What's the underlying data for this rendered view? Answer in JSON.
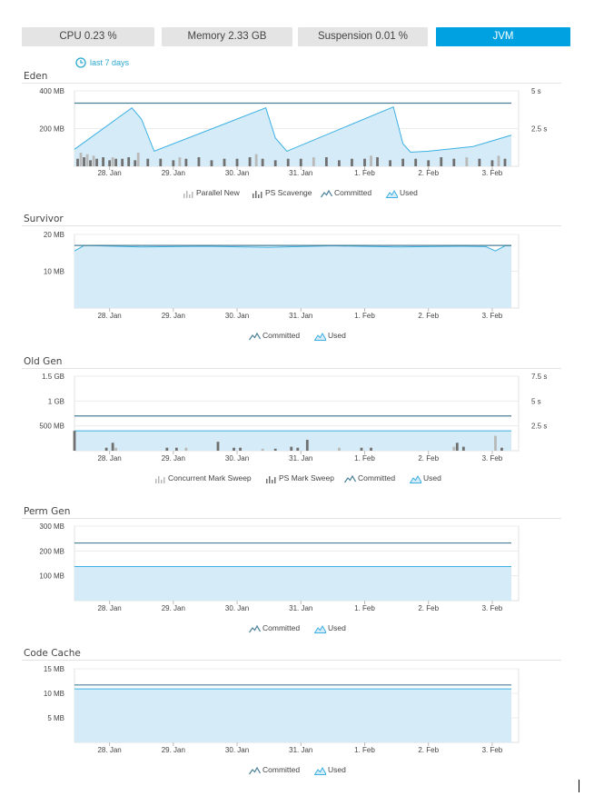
{
  "tabs": [
    {
      "label": "CPU 0.23 %",
      "active": false
    },
    {
      "label": "Memory 2.33 GB",
      "active": false
    },
    {
      "label": "Suspension 0.01 %",
      "active": false
    },
    {
      "label": "JVM",
      "active": true
    }
  ],
  "timeframe": {
    "label": "last 7 days",
    "icon": "clock-icon"
  },
  "colors": {
    "accent": "#00a1e0",
    "used_fill": "#d5ecf8",
    "used_line": "#3cb0e3",
    "committed_line": "#4a7f96",
    "gc_bar_light": "#b9b9b9",
    "gc_bar_dark": "#707070",
    "tab_bg": "#e4e4e4"
  },
  "sections": [
    {
      "title": "Eden",
      "legend": [
        {
          "label": "Parallel New",
          "icon": "bar-light-icon"
        },
        {
          "label": "PS Scavenge",
          "icon": "bar-dark-icon"
        },
        {
          "label": "Committed",
          "icon": "committed-line-icon"
        },
        {
          "label": "Used",
          "icon": "used-area-icon"
        }
      ]
    },
    {
      "title": "Survivor",
      "legend": [
        {
          "label": "Committed",
          "icon": "committed-line-icon"
        },
        {
          "label": "Used",
          "icon": "used-area-icon"
        }
      ]
    },
    {
      "title": "Old Gen",
      "legend": [
        {
          "label": "Concurrent Mark Sweep",
          "icon": "bar-light-icon"
        },
        {
          "label": "PS Mark Sweep",
          "icon": "bar-dark-icon"
        },
        {
          "label": "Committed",
          "icon": "committed-line-icon"
        },
        {
          "label": "Used",
          "icon": "used-area-icon"
        }
      ]
    },
    {
      "title": "Perm Gen",
      "legend": [
        {
          "label": "Committed",
          "icon": "committed-line-icon"
        },
        {
          "label": "Used",
          "icon": "used-area-icon"
        }
      ]
    },
    {
      "title": "Code Cache",
      "legend": [
        {
          "label": "Committed",
          "icon": "committed-line-icon"
        },
        {
          "label": "Used",
          "icon": "used-area-icon"
        }
      ]
    }
  ],
  "chart_data": [
    {
      "type": "area",
      "name": "Eden",
      "x_ticks": [
        "28. Jan",
        "29. Jan",
        "30. Jan",
        "31. Jan",
        "1. Feb",
        "2. Feb",
        "3. Feb"
      ],
      "x_range": [
        -0.55,
        6.3
      ],
      "y_ticks": [
        {
          "value": 200,
          "label": "200 MB"
        },
        {
          "value": 400,
          "label": "400 MB"
        }
      ],
      "ylim": [
        0,
        400
      ],
      "y2_ticks": [
        {
          "value": 2.5,
          "label": "2.5 s"
        },
        {
          "value": 5,
          "label": "5 s"
        }
      ],
      "y2lim": [
        0,
        5
      ],
      "grid": true,
      "series": [
        {
          "name": "Committed",
          "kind": "line",
          "x": [
            -0.55,
            6.3
          ],
          "values": [
            335,
            335
          ]
        },
        {
          "name": "Used",
          "kind": "area",
          "x": [
            -0.55,
            0.35,
            0.5,
            0.7,
            2.45,
            2.6,
            2.78,
            4.45,
            4.6,
            4.72,
            5.0,
            5.7,
            6.3
          ],
          "values": [
            90,
            310,
            250,
            80,
            310,
            150,
            80,
            315,
            120,
            75,
            80,
            105,
            165
          ]
        },
        {
          "name": "Parallel New",
          "kind": "gc-bar",
          "x": [
            -0.45,
            -0.35,
            -0.25,
            0.05,
            0.45,
            1.1,
            2.3,
            3.2,
            4.1,
            5.6,
            6.1
          ],
          "values": [
            0.9,
            0.8,
            0.7,
            0.6,
            0.9,
            0.6,
            0.8,
            0.6,
            0.7,
            0.6,
            0.7
          ]
        },
        {
          "name": "PS Scavenge",
          "kind": "gc-bar",
          "x": [
            -0.5,
            -0.4,
            -0.3,
            -0.2,
            -0.1,
            0.0,
            0.1,
            0.2,
            0.3,
            0.4,
            0.6,
            0.8,
            1.0,
            1.2,
            1.4,
            1.6,
            1.8,
            2.0,
            2.2,
            2.4,
            2.6,
            2.8,
            3.0,
            3.4,
            3.6,
            3.8,
            4.0,
            4.2,
            4.4,
            4.6,
            4.8,
            5.0,
            5.2,
            5.4,
            5.8,
            6.0,
            6.2
          ],
          "values": [
            0.5,
            0.6,
            0.4,
            0.5,
            0.6,
            0.4,
            0.5,
            0.5,
            0.6,
            0.4,
            0.5,
            0.5,
            0.4,
            0.5,
            0.6,
            0.4,
            0.5,
            0.5,
            0.6,
            0.5,
            0.4,
            0.5,
            0.5,
            0.6,
            0.4,
            0.5,
            0.5,
            0.6,
            0.4,
            0.5,
            0.5,
            0.4,
            0.6,
            0.5,
            0.5,
            0.4,
            0.5
          ]
        }
      ]
    },
    {
      "type": "area",
      "name": "Survivor",
      "x_ticks": [
        "28. Jan",
        "29. Jan",
        "30. Jan",
        "31. Jan",
        "1. Feb",
        "2. Feb",
        "3. Feb"
      ],
      "x_range": [
        -0.55,
        6.3
      ],
      "y_ticks": [
        {
          "value": 10,
          "label": "10 MB"
        },
        {
          "value": 20,
          "label": "20 MB"
        }
      ],
      "ylim": [
        0,
        20
      ],
      "grid": true,
      "series": [
        {
          "name": "Committed",
          "kind": "line",
          "x": [
            -0.55,
            6.3
          ],
          "values": [
            17,
            17
          ]
        },
        {
          "name": "Used",
          "kind": "area",
          "x": [
            -0.55,
            -0.4,
            0.5,
            1.5,
            2.5,
            3.5,
            4.5,
            5.5,
            5.9,
            6.05,
            6.2,
            6.3
          ],
          "values": [
            15.5,
            17,
            16.6,
            16.8,
            16.5,
            16.9,
            16.6,
            16.8,
            16.7,
            15.5,
            16.9,
            16.9
          ]
        }
      ]
    },
    {
      "type": "area",
      "name": "Old Gen",
      "x_ticks": [
        "28. Jan",
        "29. Jan",
        "30. Jan",
        "31. Jan",
        "1. Feb",
        "2. Feb",
        "3. Feb"
      ],
      "x_range": [
        -0.55,
        6.3
      ],
      "y_ticks": [
        {
          "value": 500,
          "label": "500 MB"
        },
        {
          "value": 1000,
          "label": "1 GB"
        },
        {
          "value": 1500,
          "label": "1.5 GB"
        }
      ],
      "ylim": [
        0,
        1500
      ],
      "y2_ticks": [
        {
          "value": 2.5,
          "label": "2.5 s"
        },
        {
          "value": 5,
          "label": "5 s"
        },
        {
          "value": 7.5,
          "label": "7.5 s"
        }
      ],
      "y2lim": [
        0,
        7.5
      ],
      "grid": true,
      "series": [
        {
          "name": "Committed",
          "kind": "line",
          "x": [
            -0.55,
            6.3
          ],
          "values": [
            700,
            700
          ]
        },
        {
          "name": "Used",
          "kind": "area",
          "x": [
            -0.55,
            6.3
          ],
          "values": [
            400,
            400
          ]
        },
        {
          "name": "Concurrent Mark Sweep",
          "kind": "gc-bar",
          "x": [
            0.1,
            1.2,
            2.4,
            3.6,
            5.4,
            6.05
          ],
          "values": [
            0.3,
            0.3,
            0.2,
            0.3,
            0.4,
            1.5
          ]
        },
        {
          "name": "PS Mark Sweep",
          "kind": "gc-bar",
          "x": [
            -0.55,
            -0.05,
            0.05,
            0.9,
            1.05,
            1.7,
            1.95,
            2.05,
            2.6,
            2.85,
            2.95,
            3.1,
            3.95,
            4.1,
            5.45,
            5.55,
            6.15
          ],
          "values": [
            2.0,
            0.3,
            0.8,
            0.3,
            0.3,
            0.9,
            0.3,
            0.3,
            0.2,
            0.4,
            0.3,
            1.1,
            0.3,
            0.3,
            0.8,
            0.4,
            0.3
          ]
        }
      ]
    },
    {
      "type": "area",
      "name": "Perm Gen",
      "x_ticks": [
        "28. Jan",
        "29. Jan",
        "30. Jan",
        "31. Jan",
        "1. Feb",
        "2. Feb",
        "3. Feb"
      ],
      "x_range": [
        -0.55,
        6.3
      ],
      "y_ticks": [
        {
          "value": 100,
          "label": "100 MB"
        },
        {
          "value": 200,
          "label": "200 MB"
        },
        {
          "value": 300,
          "label": "300 MB"
        }
      ],
      "ylim": [
        0,
        300
      ],
      "grid": true,
      "series": [
        {
          "name": "Committed",
          "kind": "line",
          "x": [
            -0.55,
            6.3
          ],
          "values": [
            232,
            232
          ]
        },
        {
          "name": "Used",
          "kind": "area",
          "x": [
            -0.55,
            6.3
          ],
          "values": [
            137,
            137
          ]
        }
      ]
    },
    {
      "type": "area",
      "name": "Code Cache",
      "x_ticks": [
        "28. Jan",
        "29. Jan",
        "30. Jan",
        "31. Jan",
        "1. Feb",
        "2. Feb",
        "3. Feb"
      ],
      "x_range": [
        -0.55,
        6.3
      ],
      "y_ticks": [
        {
          "value": 5,
          "label": "5 MB"
        },
        {
          "value": 10,
          "label": "10 MB"
        },
        {
          "value": 15,
          "label": "15 MB"
        }
      ],
      "ylim": [
        0,
        15
      ],
      "grid": true,
      "series": [
        {
          "name": "Committed",
          "kind": "line",
          "x": [
            -0.55,
            6.3
          ],
          "values": [
            11.7,
            11.7
          ]
        },
        {
          "name": "Used",
          "kind": "area",
          "x": [
            -0.55,
            6.3
          ],
          "values": [
            10.9,
            10.9
          ]
        }
      ]
    }
  ]
}
